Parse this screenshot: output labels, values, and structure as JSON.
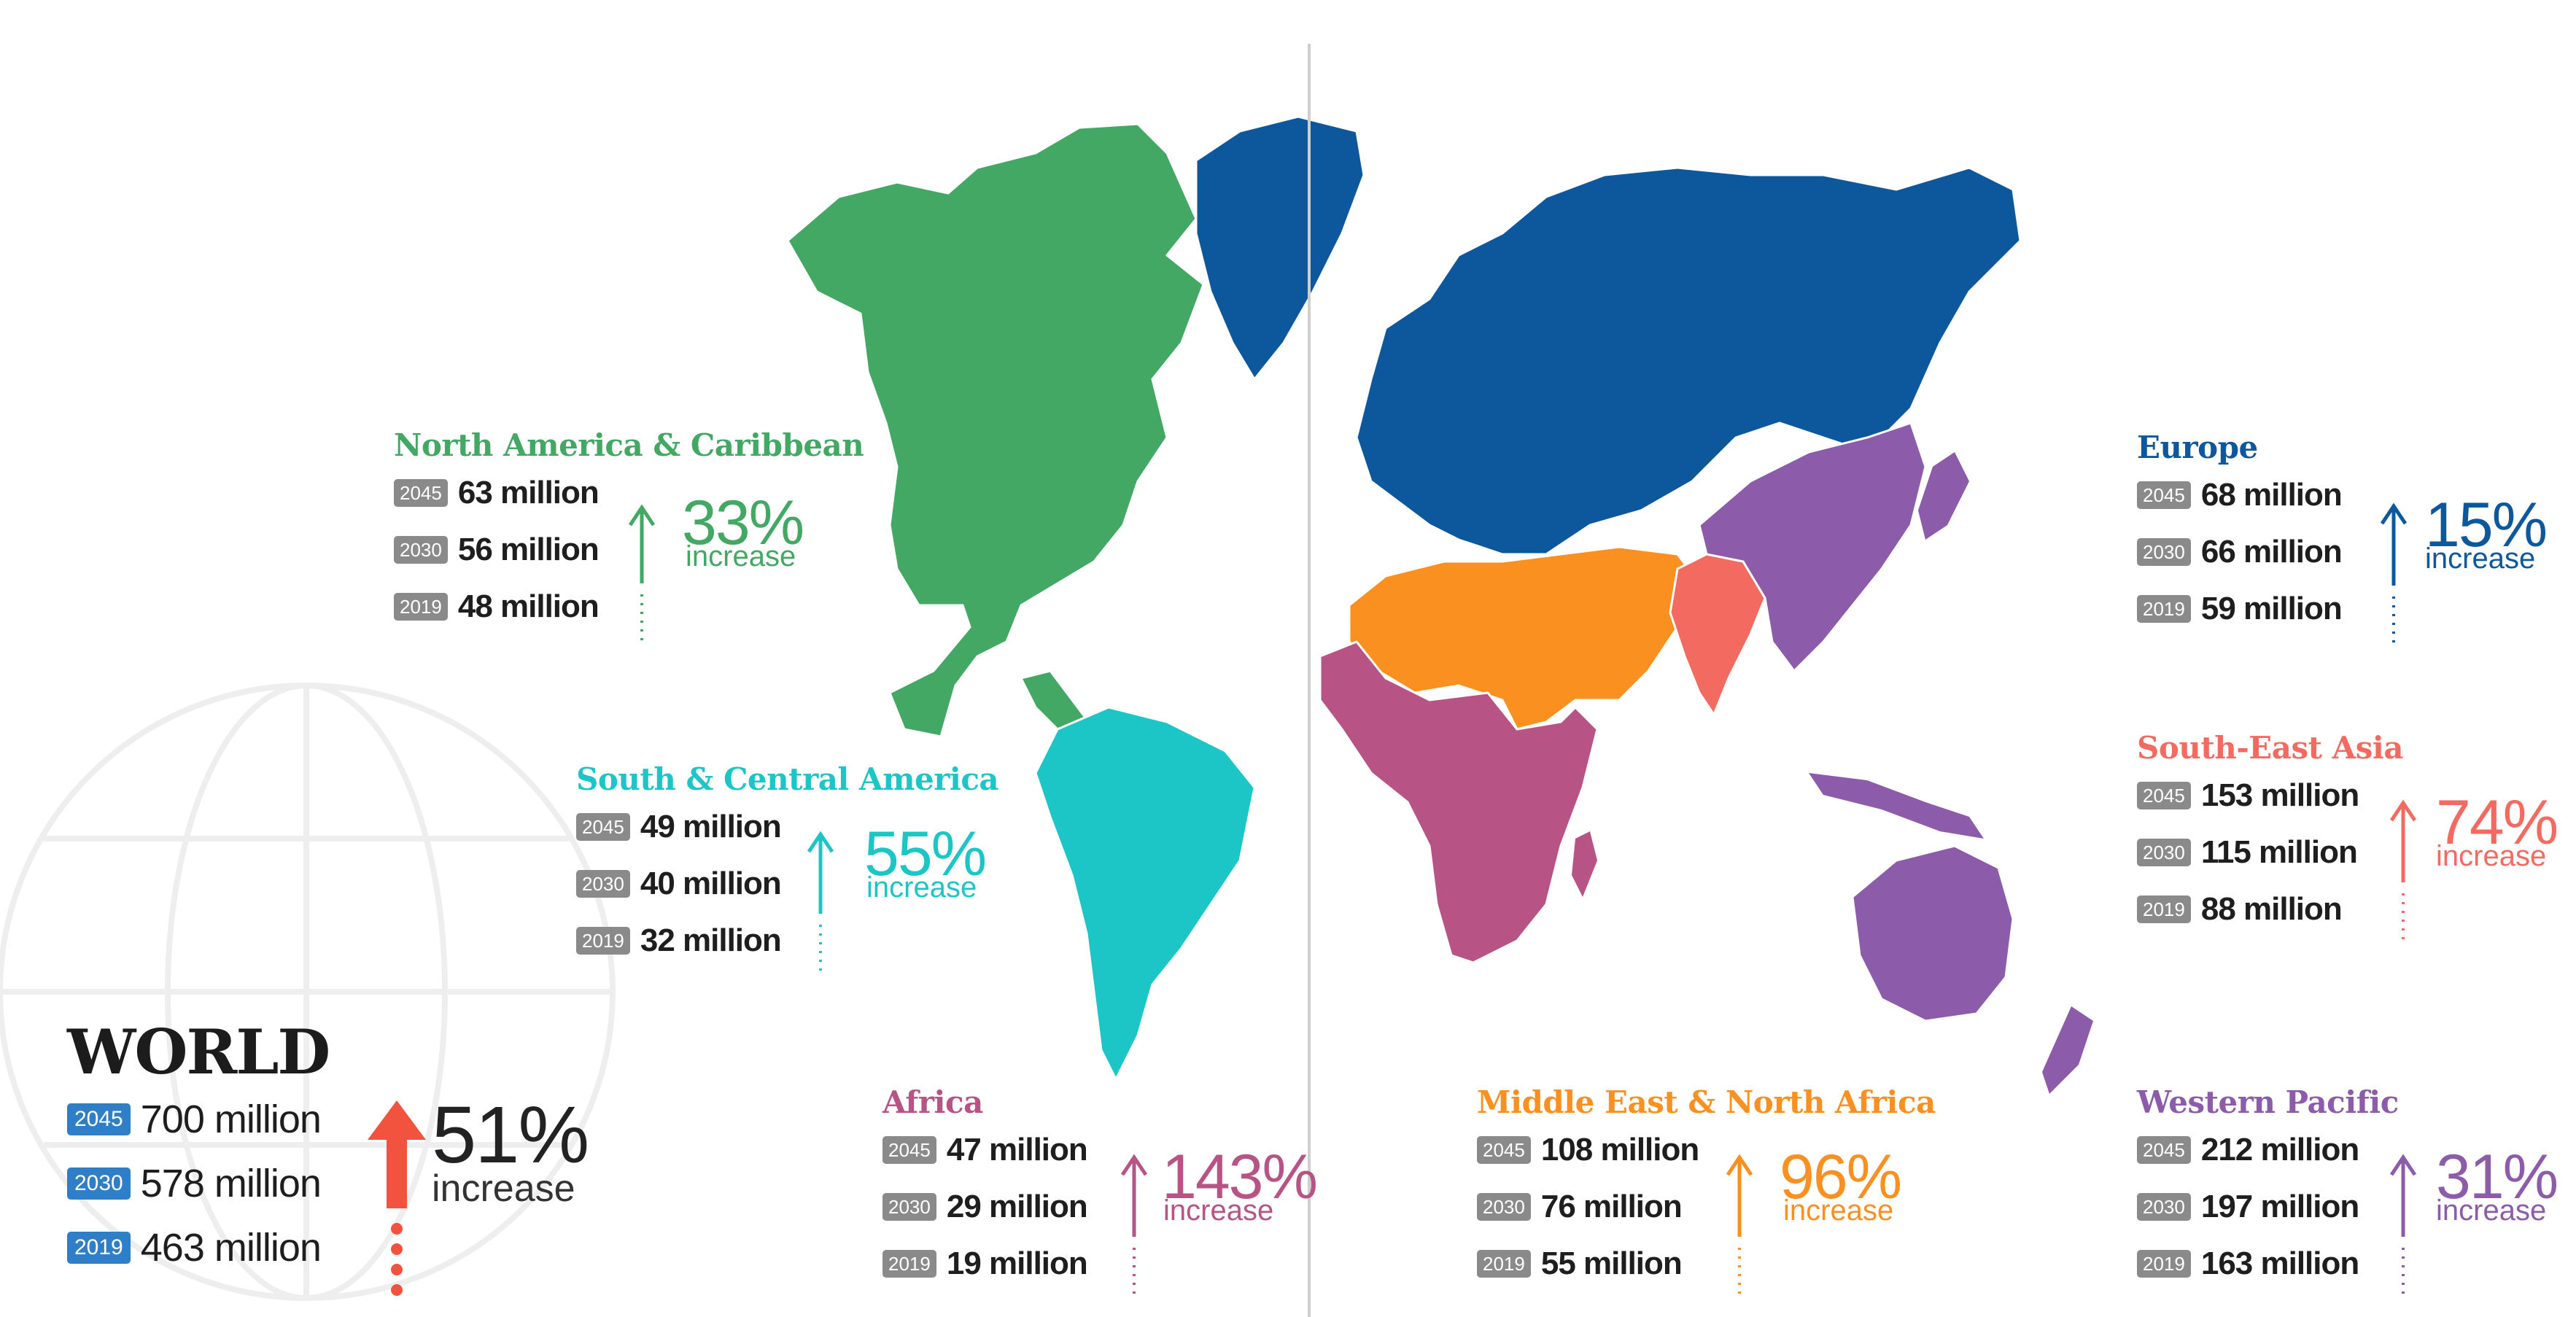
{
  "colors": {
    "north_america": "#43a864",
    "south_america": "#1cc5c6",
    "africa": "#b85485",
    "europe": "#0d589d",
    "south_east_asia": "#f36b60",
    "middle_east": "#f9901f",
    "western_pacific": "#8c5ba9",
    "world_accent": "#f2533f",
    "year_badge": "#8a8a8a",
    "world_badge": "#2f7fc8"
  },
  "world": {
    "title": "WORLD",
    "rows": [
      {
        "year": "2045",
        "value": "700 million"
      },
      {
        "year": "2030",
        "value": "578 million"
      },
      {
        "year": "2019",
        "value": "463 million"
      }
    ],
    "percent": "51%",
    "increase_label": "increase"
  },
  "regions": [
    {
      "key": "north_america",
      "title": "North America & Caribbean",
      "rows": [
        {
          "year": "2045",
          "value": "63 million"
        },
        {
          "year": "2030",
          "value": "56 million"
        },
        {
          "year": "2019",
          "value": "48 million"
        }
      ],
      "percent": "33%",
      "increase_label": "increase"
    },
    {
      "key": "south_america",
      "title": "South & Central America",
      "rows": [
        {
          "year": "2045",
          "value": "49 million"
        },
        {
          "year": "2030",
          "value": "40 million"
        },
        {
          "year": "2019",
          "value": "32 million"
        }
      ],
      "percent": "55%",
      "increase_label": "increase"
    },
    {
      "key": "africa",
      "title": "Africa",
      "rows": [
        {
          "year": "2045",
          "value": "47 million"
        },
        {
          "year": "2030",
          "value": "29 million"
        },
        {
          "year": "2019",
          "value": "19 million"
        }
      ],
      "percent": "143%",
      "increase_label": "increase"
    },
    {
      "key": "middle_east",
      "title": "Middle East & North Africa",
      "rows": [
        {
          "year": "2045",
          "value": "108 million"
        },
        {
          "year": "2030",
          "value": "76 million"
        },
        {
          "year": "2019",
          "value": "55 million"
        }
      ],
      "percent": "96%",
      "increase_label": "increase"
    },
    {
      "key": "europe",
      "title": "Europe",
      "rows": [
        {
          "year": "2045",
          "value": "68 million"
        },
        {
          "year": "2030",
          "value": "66 million"
        },
        {
          "year": "2019",
          "value": "59 million"
        }
      ],
      "percent": "15%",
      "increase_label": "increase"
    },
    {
      "key": "south_east_asia",
      "title": "South-East Asia",
      "rows": [
        {
          "year": "2045",
          "value": "153 million"
        },
        {
          "year": "2030",
          "value": "115 million"
        },
        {
          "year": "2019",
          "value": "88 million"
        }
      ],
      "percent": "74%",
      "increase_label": "increase"
    },
    {
      "key": "western_pacific",
      "title": "Western Pacific",
      "rows": [
        {
          "year": "2045",
          "value": "212 million"
        },
        {
          "year": "2030",
          "value": "197 million"
        },
        {
          "year": "2019",
          "value": "163 million"
        }
      ],
      "percent": "31%",
      "increase_label": "increase"
    }
  ]
}
